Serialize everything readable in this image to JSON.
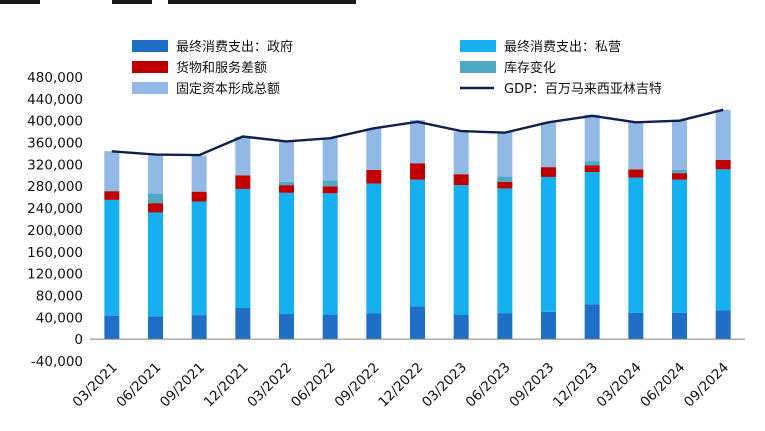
{
  "chart_data": {
    "type": "bar",
    "stacked": true,
    "title": "",
    "xlabel": "",
    "ylabel": "",
    "ylim": [
      -40000,
      480000
    ],
    "yticks": [
      -40000,
      0,
      40000,
      80000,
      120000,
      160000,
      200000,
      240000,
      280000,
      320000,
      360000,
      400000,
      440000,
      480000
    ],
    "ytick_labels": [
      "-40,000",
      "0",
      "40,000",
      "80,000",
      "120,000",
      "160,000",
      "200,000",
      "240,000",
      "280,000",
      "320,000",
      "360,000",
      "400,000",
      "440,000",
      "480,000"
    ],
    "categories": [
      "03/2021",
      "06/2021",
      "09/2021",
      "12/2021",
      "03/2022",
      "06/2022",
      "09/2022",
      "12/2022",
      "03/2023",
      "06/2023",
      "09/2023",
      "12/2023",
      "03/2024",
      "06/2024",
      "09/2024"
    ],
    "grid": false,
    "legend_position": "top",
    "series": [
      {
        "name": "最终消费支出：政府",
        "kind": "bar",
        "color": "#1f6fc6",
        "values": [
          43000,
          42000,
          44000,
          57000,
          46000,
          45000,
          47000,
          60000,
          45000,
          47000,
          50000,
          64000,
          48000,
          48000,
          53000
        ]
      },
      {
        "name": "最终消费支出：私营",
        "kind": "bar",
        "color": "#16b0f0",
        "values": [
          212000,
          190000,
          208000,
          218000,
          222000,
          222000,
          238000,
          232000,
          237000,
          229000,
          247000,
          242000,
          248000,
          244000,
          258000
        ]
      },
      {
        "name": "货物和服务差额",
        "kind": "bar",
        "color": "#c00000",
        "values": [
          16000,
          17000,
          18000,
          25000,
          14000,
          13000,
          25000,
          30000,
          20000,
          12000,
          18000,
          12000,
          15000,
          12000,
          17000
        ]
      },
      {
        "name": "库存变化",
        "kind": "bar",
        "color": "#4fa9c5",
        "values": [
          0,
          18000,
          0,
          0,
          6000,
          11000,
          0,
          0,
          0,
          10000,
          0,
          8000,
          0,
          6000,
          0
        ]
      },
      {
        "name": "固定资本形成总额",
        "kind": "bar",
        "color": "#92b8e6",
        "values": [
          73000,
          69000,
          66000,
          70000,
          74000,
          77000,
          76000,
          79000,
          78000,
          82000,
          82000,
          85000,
          87000,
          92000,
          92000
        ]
      },
      {
        "name": "GDP：百万马来西亚林吉特",
        "kind": "line",
        "color": "#10204a",
        "values": [
          344000,
          338000,
          337000,
          371000,
          362000,
          368000,
          386000,
          398000,
          381000,
          378000,
          397000,
          409000,
          397000,
          400000,
          420000
        ]
      }
    ]
  }
}
